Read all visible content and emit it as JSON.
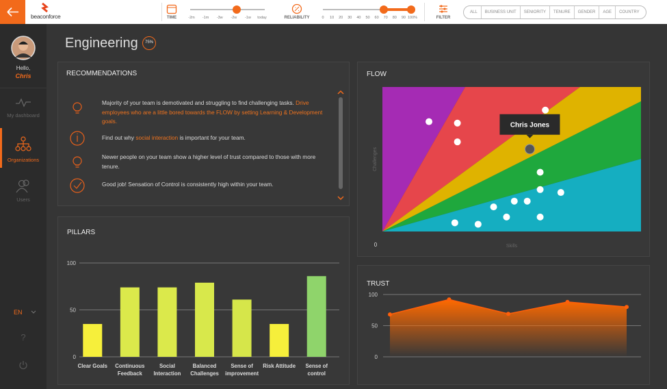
{
  "header": {
    "logo": "beaconforce",
    "time": {
      "label": "TIME",
      "ticks": [
        "-2m",
        "-1m",
        "-3w",
        "-2w",
        "-1w",
        "today"
      ]
    },
    "reliability": {
      "label": "RELIABILITY",
      "ticks": [
        "0",
        "10",
        "20",
        "30",
        "40",
        "50",
        "60",
        "70",
        "80",
        "90",
        "100%"
      ]
    },
    "filter": {
      "label": "FILTER",
      "options": [
        "ALL",
        "BUSINESS UNIT",
        "SENIORITY",
        "TENURE",
        "GENDER",
        "AGE",
        "COUNTRY"
      ]
    }
  },
  "sidebar": {
    "greeting": "Hello,",
    "user": "Chris",
    "nav": [
      "My dashboard",
      "Organizations",
      "Users"
    ],
    "language": "EN",
    "help": "?"
  },
  "page": {
    "title": "Engineering",
    "badge": "75%"
  },
  "recommendations": {
    "title": "RECOMMENDATIONS",
    "items": [
      {
        "segments": [
          {
            "text": "Majority of your team is demotivated and struggling to find challenging tasks. ",
            "highlight": false
          },
          {
            "text": "Drive employees who are a little bored towards the FLOW by setting Learning & Development goals.",
            "highlight": true
          }
        ]
      },
      {
        "segments": [
          {
            "text": "Find out why ",
            "highlight": false
          },
          {
            "text": "social interaction",
            "highlight": true
          },
          {
            "text": " is important for your team.",
            "highlight": false
          }
        ]
      },
      {
        "segments": [
          {
            "text": "Newer people on your team show a higher level of trust compared to those with more tenure.",
            "highlight": false
          }
        ]
      },
      {
        "segments": [
          {
            "text": "Good job! Sensation of Control is consistently high within your team.",
            "highlight": false
          }
        ]
      }
    ]
  },
  "chart_data": [
    {
      "type": "bar",
      "title": "PILLARS",
      "categories": [
        "Clear Goals",
        "Continuous Feedback",
        "Social Interaction",
        "Balanced Challenges",
        "Sense of improvement",
        "Risk Attitude",
        "Sense of control"
      ],
      "values": [
        35,
        74,
        74,
        79,
        61,
        35,
        86
      ],
      "colors": [
        "#f6ef3b",
        "#dbe94b",
        "#dbe94b",
        "#d8e84b",
        "#d6e64a",
        "#f6ef3b",
        "#8fd46b"
      ],
      "ylim": [
        0,
        100
      ],
      "yticks": [
        0,
        50,
        100
      ],
      "grid": true
    },
    {
      "type": "scatter",
      "title": "FLOW",
      "x_label": "Skills",
      "y_label": "Challenges",
      "x": [
        18,
        29,
        29,
        63,
        57,
        61,
        61,
        69,
        56,
        51,
        43,
        48,
        61,
        28,
        37
      ],
      "y": [
        76,
        75,
        62,
        84,
        57,
        41,
        29,
        27,
        21,
        21,
        17,
        10,
        10,
        6,
        5
      ],
      "color": "#ffffff",
      "xlim": [
        0,
        100
      ],
      "ylim": [
        0,
        100
      ],
      "xticks": [
        0
      ],
      "highlight_index": 4,
      "highlight_label": "Chris Jones",
      "highlight_color": "#555555"
    },
    {
      "type": "area",
      "title": "TRUST",
      "categories": [
        null,
        null,
        null,
        null,
        null
      ],
      "values": [
        68,
        92,
        69,
        88,
        80
      ],
      "color": "#ff5f0a",
      "ylim": [
        0,
        100
      ],
      "yticks": [
        0,
        50,
        100
      ],
      "grid": true
    }
  ]
}
